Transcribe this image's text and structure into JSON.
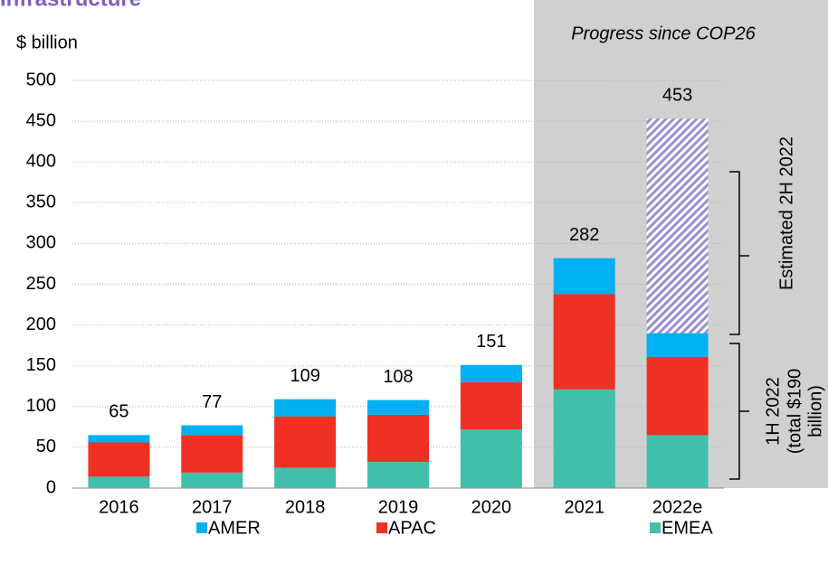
{
  "chart_data": {
    "type": "stacked_bar",
    "title": "Infrastructure",
    "y_label": "$ billion",
    "shaded_region_label": "Progress since COP26",
    "categories": [
      "2016",
      "2017",
      "2018",
      "2019",
      "2020",
      "2021",
      "2022e"
    ],
    "series": [
      {
        "name": "EMEA",
        "color": "#41bfaa",
        "values": [
          14,
          19,
          25,
          32,
          72,
          121,
          65
        ]
      },
      {
        "name": "APAC",
        "color": "#ee3124",
        "values": [
          42,
          46,
          63,
          58,
          58,
          117,
          96
        ]
      },
      {
        "name": "AMER",
        "color": "#00b0f0",
        "values": [
          9,
          12,
          21,
          18,
          21,
          44,
          29
        ]
      },
      {
        "name": "Estimated 2H 2022",
        "color": "#9b8fd0",
        "values": [
          null,
          null,
          null,
          null,
          null,
          null,
          263
        ]
      }
    ],
    "totals": [
      65,
      77,
      109,
      108,
      151,
      282,
      453
    ],
    "annotation_1h": [
      "1H 2022",
      "(total $190",
      "billion)"
    ],
    "ylim": [
      0,
      500
    ],
    "yticks": [
      0,
      50,
      100,
      150,
      200,
      250,
      300,
      350,
      400,
      450,
      500
    ],
    "grid": true,
    "legend_order": [
      2,
      1,
      0
    ]
  }
}
